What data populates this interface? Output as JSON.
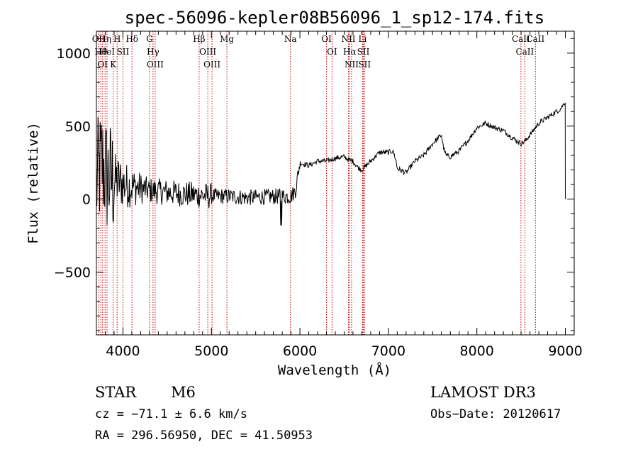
{
  "chart_data": {
    "type": "line",
    "title": "spec-56096-kepler08B56096_1_sp12-174.fits",
    "xlabel": "Wavelength (Å)",
    "ylabel": "Flux (relative)",
    "xlim": [
      3700,
      9100
    ],
    "ylim": [
      -930,
      1150
    ],
    "xticks": [
      4000,
      5000,
      6000,
      7000,
      8000,
      9000
    ],
    "xtick_labels": [
      "4000",
      "5000",
      "6000",
      "7000",
      "8000",
      "9000"
    ],
    "yticks": [
      -500,
      0,
      500,
      1000
    ],
    "ytick_labels": [
      "−500",
      "0",
      "500",
      "1000"
    ],
    "series": [
      {
        "name": "spectrum",
        "x": [
          3700,
          3760,
          3820,
          3880,
          3950,
          4050,
          4150,
          4300,
          4450,
          4600,
          4800,
          5000,
          5200,
          5400,
          5600,
          5800,
          5900,
          5950,
          6000,
          6050,
          6100,
          6200,
          6300,
          6400,
          6500,
          6550,
          6600,
          6650,
          6700,
          6750,
          6800,
          6900,
          7000,
          7050,
          7080,
          7100,
          7200,
          7300,
          7400,
          7500,
          7600,
          7620,
          7650,
          7700,
          7800,
          7900,
          8000,
          8100,
          8200,
          8300,
          8400,
          8500,
          8550,
          8600,
          8700,
          8800,
          8900,
          8950,
          9000
        ],
        "y": [
          100,
          250,
          150,
          130,
          120,
          90,
          80,
          60,
          50,
          40,
          30,
          20,
          20,
          10,
          15,
          20,
          20,
          60,
          250,
          240,
          230,
          260,
          260,
          280,
          290,
          270,
          260,
          220,
          200,
          230,
          260,
          320,
          320,
          330,
          280,
          210,
          180,
          260,
          300,
          380,
          440,
          360,
          300,
          290,
          330,
          400,
          490,
          520,
          490,
          470,
          420,
          380,
          400,
          440,
          520,
          560,
          600,
          620,
          670
        ]
      }
    ],
    "emission_lines": [
      {
        "wavelength": 3727,
        "labels": [
          "OII"
        ]
      },
      {
        "wavelength": 3750,
        "labels": [
          "Hθ"
        ]
      },
      {
        "wavelength": 3770,
        "labels": [
          "OI"
        ]
      },
      {
        "wavelength": 3798,
        "labels": [
          "Hη"
        ]
      },
      {
        "wavelength": 3820,
        "labels": [
          "HeI"
        ]
      },
      {
        "wavelength": 3889,
        "labels": [
          "K"
        ]
      },
      {
        "wavelength": 3934,
        "labels": [
          "H"
        ]
      },
      {
        "wavelength": 4000,
        "labels": [
          "SII"
        ]
      },
      {
        "wavelength": 4102,
        "labels": [
          "Hδ"
        ]
      },
      {
        "wavelength": 4300,
        "labels": [
          "G"
        ]
      },
      {
        "wavelength": 4340,
        "labels": [
          "Hγ"
        ]
      },
      {
        "wavelength": 4364,
        "labels": [
          "OIII"
        ]
      },
      {
        "wavelength": 4861,
        "labels": [
          "Hβ"
        ]
      },
      {
        "wavelength": 4959,
        "labels": [
          "OIII"
        ]
      },
      {
        "wavelength": 5007,
        "labels": [
          "OIII"
        ]
      },
      {
        "wavelength": 5175,
        "labels": [
          "Mg"
        ]
      },
      {
        "wavelength": 5893,
        "labels": [
          "Na"
        ]
      },
      {
        "wavelength": 6300,
        "labels": [
          "OI"
        ]
      },
      {
        "wavelength": 6363,
        "labels": [
          "OI"
        ]
      },
      {
        "wavelength": 6548,
        "labels": [
          "NII"
        ]
      },
      {
        "wavelength": 6563,
        "labels": [
          "Hα"
        ]
      },
      {
        "wavelength": 6584,
        "labels": [
          "NII"
        ]
      },
      {
        "wavelength": 6708,
        "labels": [
          "Li"
        ]
      },
      {
        "wavelength": 6717,
        "labels": [
          "SII"
        ]
      },
      {
        "wavelength": 6731,
        "labels": [
          "SII"
        ]
      },
      {
        "wavelength": 8498,
        "labels": [
          "CaII"
        ]
      },
      {
        "wavelength": 8542,
        "labels": [
          "CaII"
        ]
      },
      {
        "wavelength": 8662,
        "labels": [
          "CaII"
        ]
      }
    ]
  },
  "info": {
    "object_class": "STAR",
    "subclass": "M6",
    "survey": "LAMOST DR3",
    "redshift": "cz = −71.1 ± 6.6 km/s",
    "obs_date": "Obs−Date: 20120617",
    "coords": "RA = 296.56950, DEC =  41.50953"
  },
  "colors": {
    "line_marker": "#cc0000",
    "spectrum": "#000000"
  }
}
